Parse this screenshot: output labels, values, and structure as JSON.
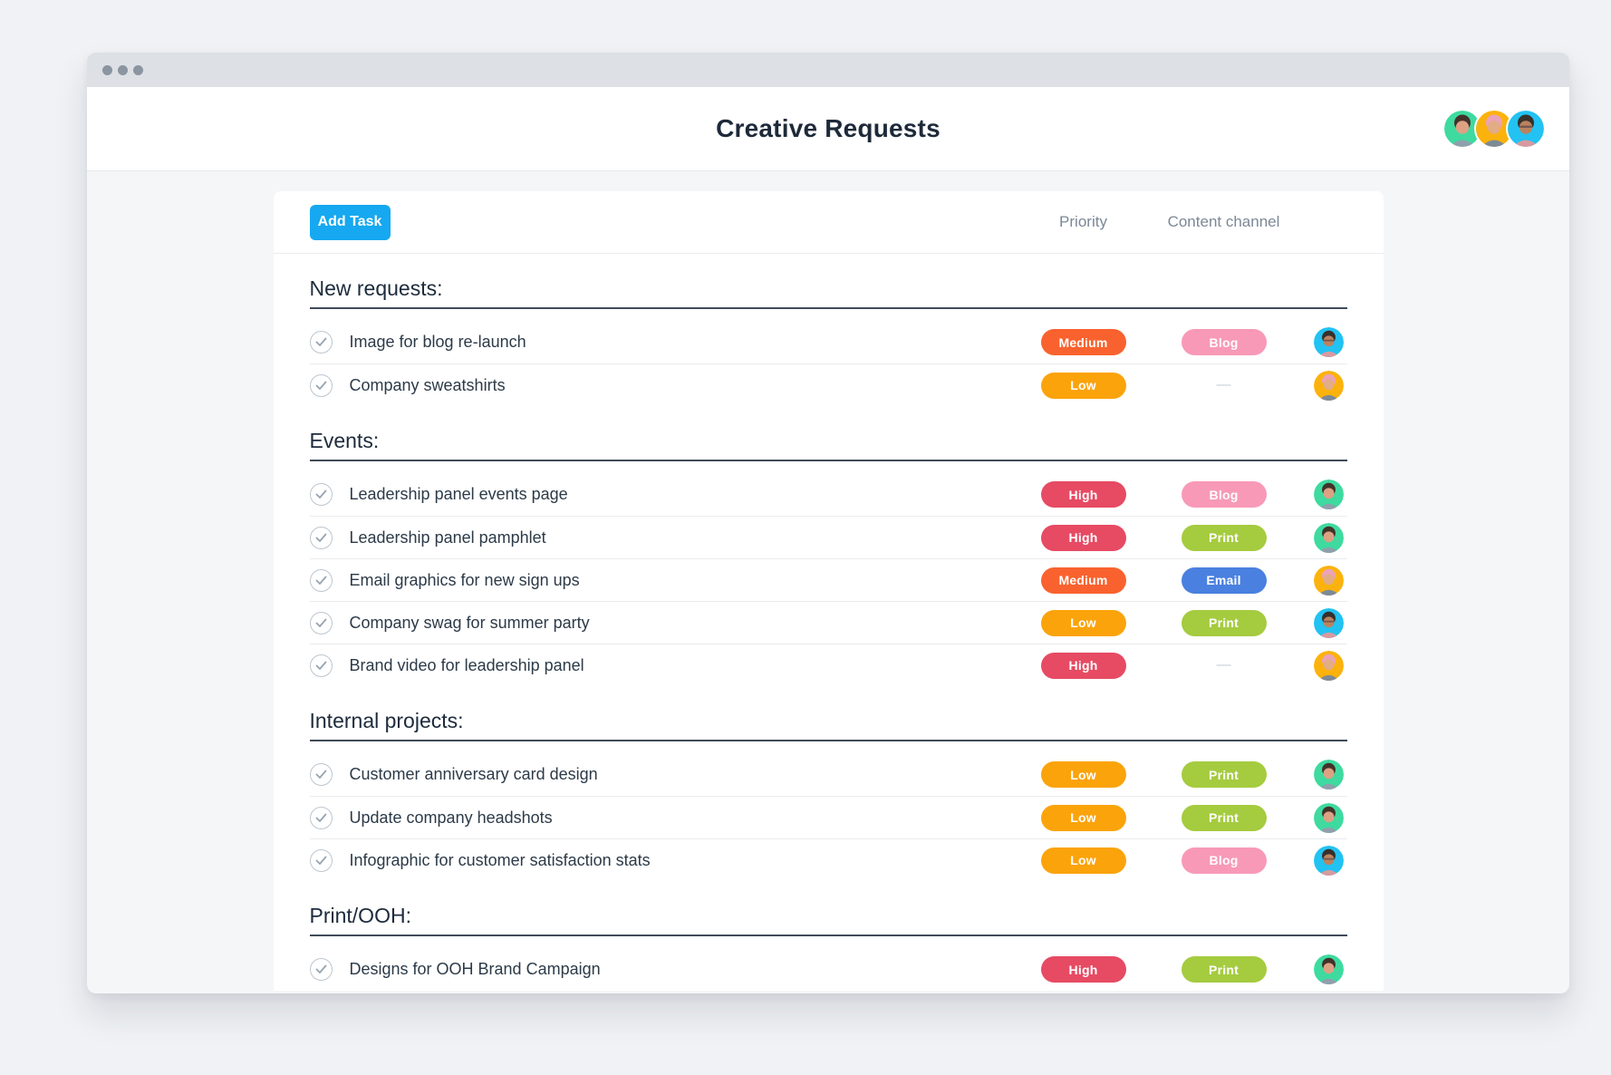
{
  "window": {
    "title": "Creative Requests",
    "controls": [
      "dot",
      "dot",
      "dot"
    ]
  },
  "toolbar": {
    "add_task_label": "Add Task",
    "priority_column_label": "Priority",
    "channel_column_label": "Content channel"
  },
  "empty_channel_dash": "—",
  "colors": {
    "add_task_button": "#16a8f0",
    "section_rule": "#3f4b59",
    "check_mark": "#97a4b0"
  },
  "priority_colors": {
    "High": "#e74a63",
    "Medium": "#f9622e",
    "Low": "#fba30b"
  },
  "channel_colors": {
    "Blog": "#f899b8",
    "Print": "#a5cb3f",
    "Email": "#4a80df"
  },
  "avatars": {
    "green": {
      "bg": "#3eda9f",
      "hair": "#43322a",
      "skin": "#dda184",
      "shirt": "#8fa0ac",
      "glasses": false
    },
    "yellow": {
      "bg": "#fcb20c",
      "hair": "#eba3b8",
      "skin": "#e2ac85",
      "shirt": "#7d8a96",
      "glasses": false
    },
    "cyan": {
      "bg": "#22c2f2",
      "hair": "#37302b",
      "skin": "#bb835f",
      "shirt": "#d79aa0",
      "glasses": true
    }
  },
  "header_avatars": [
    "green",
    "yellow",
    "cyan"
  ],
  "sections": [
    {
      "title": "New requests:",
      "tasks": [
        {
          "name": "Image for blog re-launch",
          "priority": "Medium",
          "channel": "Blog",
          "assignee": "cyan"
        },
        {
          "name": "Company sweatshirts",
          "priority": "Low",
          "channel": null,
          "assignee": "yellow"
        }
      ]
    },
    {
      "title": "Events:",
      "tasks": [
        {
          "name": "Leadership panel events page",
          "priority": "High",
          "channel": "Blog",
          "assignee": "green"
        },
        {
          "name": "Leadership panel pamphlet",
          "priority": "High",
          "channel": "Print",
          "assignee": "green"
        },
        {
          "name": "Email graphics for new sign ups",
          "priority": "Medium",
          "channel": "Email",
          "assignee": "yellow"
        },
        {
          "name": "Company swag for summer party",
          "priority": "Low",
          "channel": "Print",
          "assignee": "cyan"
        },
        {
          "name": "Brand video for leadership panel",
          "priority": "High",
          "channel": null,
          "assignee": "yellow"
        }
      ]
    },
    {
      "title": "Internal projects:",
      "tasks": [
        {
          "name": "Customer anniversary card design",
          "priority": "Low",
          "channel": "Print",
          "assignee": "green"
        },
        {
          "name": "Update company headshots",
          "priority": "Low",
          "channel": "Print",
          "assignee": "green"
        },
        {
          "name": "Infographic for customer satisfaction stats",
          "priority": "Low",
          "channel": "Blog",
          "assignee": "cyan"
        }
      ]
    },
    {
      "title": "Print/OOH:",
      "tasks": [
        {
          "name": "Designs for OOH Brand Campaign",
          "priority": "High",
          "channel": "Print",
          "assignee": "green"
        }
      ]
    }
  ]
}
